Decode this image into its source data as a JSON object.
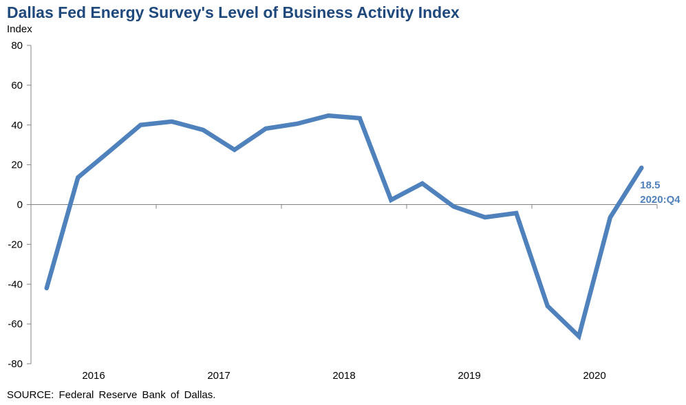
{
  "chart_data": {
    "type": "line",
    "title": "Dallas Fed Energy Survey's Level of Business Activity Index",
    "ylabel": "Index",
    "xlabel": "",
    "ylim": [
      -80,
      80
    ],
    "yticks": [
      80,
      60,
      40,
      20,
      0,
      -20,
      -40,
      -60,
      -80
    ],
    "xtick_labels": [
      "2016",
      "2017",
      "2018",
      "2019",
      "2020"
    ],
    "grid": false,
    "x": [
      "2016:Q1",
      "2016:Q2",
      "2016:Q3",
      "2016:Q4",
      "2017:Q1",
      "2017:Q2",
      "2017:Q3",
      "2017:Q4",
      "2018:Q1",
      "2018:Q2",
      "2018:Q3",
      "2018:Q4",
      "2019:Q1",
      "2019:Q2",
      "2019:Q3",
      "2019:Q4",
      "2020:Q1",
      "2020:Q2",
      "2020:Q3",
      "2020:Q4"
    ],
    "series": [
      {
        "name": "Level of Business Activity Index",
        "color": "#4f81bd",
        "values": [
          -42.0,
          13.6,
          26.7,
          40.0,
          41.7,
          37.5,
          27.5,
          38.2,
          40.6,
          44.7,
          43.4,
          2.3,
          10.6,
          -1.0,
          -6.4,
          -4.3,
          -51.0,
          -66.2,
          -6.5,
          18.5
        ]
      }
    ],
    "annotations": [
      {
        "text_value": "18.5",
        "text_period": "2020:Q4",
        "point": "2020:Q4"
      }
    ]
  },
  "source": "SOURCE:  Federal Reserve  Bank of Dallas.",
  "colors": {
    "title": "#1f497d",
    "series": "#4f81bd",
    "axis": "#808080"
  }
}
